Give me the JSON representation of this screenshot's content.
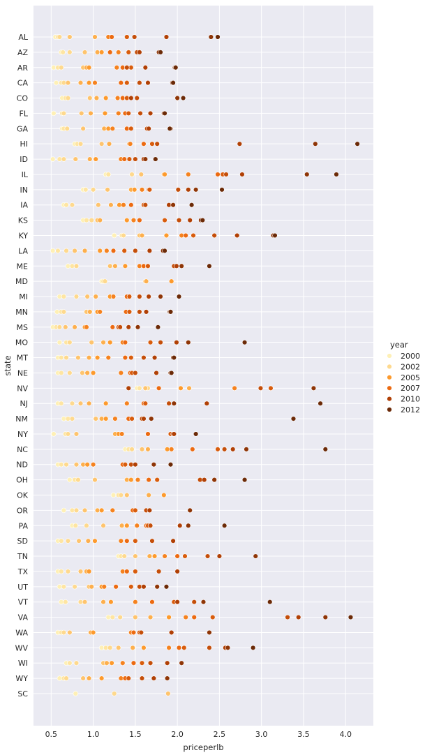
{
  "chart_data": {
    "type": "scatter",
    "xlabel": "priceperlb",
    "ylabel": "state",
    "xlim": [
      0.29,
      4.33
    ],
    "xticks": [
      "0.5",
      "1.0",
      "1.5",
      "2.0",
      "2.5",
      "3.0",
      "3.5",
      "4.0"
    ],
    "grid": true,
    "legend": {
      "title": "year",
      "placement": "right",
      "entries": [
        "2000",
        "2002",
        "2005",
        "2007",
        "2010",
        "2012"
      ],
      "colors": [
        "#fef0b6",
        "#fed98e",
        "#fd9a2d",
        "#ec6a11",
        "#b04006",
        "#6b2a08"
      ]
    },
    "years": [
      2000,
      2001,
      2002,
      2003,
      2004,
      2005,
      2006,
      2007,
      2008,
      2009,
      2010,
      2011,
      2012
    ],
    "states": [
      {
        "state": "AL",
        "prices": [
          0.55,
          0.58,
          0.6,
          0.72,
          1.02,
          1.2,
          1.18,
          1.22,
          1.4,
          1.49,
          1.87,
          2.4,
          2.48
        ]
      },
      {
        "state": "AZ",
        "prices": [
          0.62,
          0.64,
          0.72,
          0.9,
          1.05,
          1.1,
          1.3,
          1.2,
          1.42,
          1.52,
          1.55,
          1.78,
          1.8
        ]
      },
      {
        "state": "AR",
        "prices": [
          0.53,
          0.58,
          0.62,
          0.88,
          0.92,
          0.95,
          1.28,
          1.35,
          1.45,
          1.4,
          1.62,
          1.97,
          1.98
        ]
      },
      {
        "state": "CA",
        "prices": [
          0.56,
          0.62,
          0.65,
          0.7,
          0.85,
          0.95,
          1.02,
          1.33,
          1.4,
          1.55,
          1.65,
          1.94,
          1.95
        ]
      },
      {
        "state": "CO",
        "prices": [
          0.63,
          0.67,
          0.7,
          0.96,
          1.04,
          1.15,
          1.29,
          1.35,
          1.4,
          1.52,
          1.45,
          2.0,
          2.07
        ]
      },
      {
        "state": "FL",
        "prices": [
          0.53,
          0.63,
          0.65,
          0.86,
          0.97,
          1.14,
          1.3,
          1.38,
          1.42,
          1.56,
          1.68,
          1.84,
          1.85
        ]
      },
      {
        "state": "GA",
        "prices": [
          0.63,
          0.65,
          0.69,
          0.88,
          1.13,
          1.18,
          1.23,
          1.4,
          1.45,
          1.64,
          1.66,
          1.92,
          1.91
        ]
      },
      {
        "state": "HI",
        "prices": [
          0.78,
          0.81,
          0.85,
          1.1,
          1.19,
          1.43,
          1.44,
          1.6,
          1.7,
          1.76,
          2.74,
          3.64,
          4.14
        ]
      },
      {
        "state": "ID",
        "prices": [
          0.52,
          0.6,
          0.65,
          0.79,
          0.96,
          1.03,
          1.33,
          1.37,
          1.43,
          1.5,
          1.6,
          1.62,
          1.74
        ]
      },
      {
        "state": "IL",
        "prices": [
          1.15,
          1.18,
          1.46,
          1.57,
          1.84,
          1.85,
          2.13,
          2.48,
          2.54,
          2.58,
          2.77,
          3.54,
          3.89
        ]
      },
      {
        "state": "IN",
        "prices": [
          0.88,
          0.91,
          1.0,
          1.17,
          1.45,
          1.49,
          1.58,
          1.66,
          1.67,
          2.01,
          2.13,
          2.22,
          2.53
        ]
      },
      {
        "state": "IA",
        "prices": [
          0.65,
          0.68,
          0.75,
          1.06,
          1.21,
          1.31,
          1.36,
          1.45,
          1.6,
          1.62,
          1.9,
          1.95,
          2.17
        ]
      },
      {
        "state": "KS",
        "prices": [
          0.88,
          0.92,
          0.98,
          1.05,
          1.08,
          1.4,
          1.48,
          1.55,
          1.85,
          2.02,
          2.15,
          2.28,
          2.3
        ]
      },
      {
        "state": "KY",
        "prices": [
          1.25,
          1.34,
          1.36,
          1.55,
          1.58,
          1.87,
          2.05,
          2.1,
          2.19,
          2.44,
          2.71,
          3.14,
          3.16
        ]
      },
      {
        "state": "LA",
        "prices": [
          0.52,
          0.58,
          0.68,
          0.78,
          0.9,
          1.08,
          1.16,
          1.24,
          1.37,
          1.5,
          1.67,
          1.83,
          1.85
        ]
      },
      {
        "state": "ME",
        "prices": [
          0.7,
          0.75,
          0.8,
          1.2,
          1.26,
          1.38,
          1.55,
          1.6,
          1.65,
          1.96,
          1.99,
          2.05,
          2.38
        ]
      },
      {
        "state": "MD",
        "prices": [
          1.1,
          1.12,
          1.14,
          1.62,
          1.63,
          1.93,
          null,
          null,
          null,
          null,
          null,
          null,
          null
        ]
      },
      {
        "state": "MI",
        "prices": [
          0.6,
          0.65,
          0.8,
          0.93,
          1.03,
          1.2,
          1.24,
          1.4,
          1.43,
          1.55,
          1.66,
          1.8,
          2.02
        ]
      },
      {
        "state": "MN",
        "prices": [
          0.57,
          0.62,
          0.65,
          0.92,
          0.96,
          1.05,
          1.08,
          1.39,
          1.43,
          1.55,
          1.63,
          1.91,
          1.92
        ]
      },
      {
        "state": "MS",
        "prices": [
          0.52,
          0.56,
          0.6,
          0.67,
          0.78,
          0.9,
          0.92,
          1.23,
          1.3,
          1.32,
          1.42,
          1.53,
          1.77
        ]
      },
      {
        "state": "MO",
        "prices": [
          0.6,
          0.68,
          0.72,
          0.98,
          1.12,
          1.2,
          1.35,
          1.38,
          1.68,
          1.8,
          1.99,
          2.13,
          2.8
        ]
      },
      {
        "state": "MT",
        "prices": [
          0.58,
          0.62,
          0.68,
          0.82,
          0.95,
          1.05,
          1.18,
          1.38,
          1.45,
          1.6,
          1.73,
          1.95,
          1.96
        ]
      },
      {
        "state": "NE",
        "prices": [
          0.58,
          0.62,
          0.72,
          0.87,
          0.93,
          1.0,
          1.33,
          1.44,
          1.46,
          1.5,
          1.75,
          1.92,
          1.93
        ]
      },
      {
        "state": "NV",
        "prices": [
          1.52,
          1.55,
          1.65,
          1.62,
          2.14,
          2.04,
          2.68,
          1.78,
          3.11,
          2.99,
          1.42,
          3.62,
          null
        ]
      },
      {
        "state": "NJ",
        "prices": [
          0.58,
          0.62,
          0.75,
          0.85,
          0.95,
          1.15,
          1.4,
          1.6,
          1.62,
          1.9,
          2.35,
          1.96,
          3.7
        ]
      },
      {
        "state": "NM",
        "prices": [
          0.65,
          0.7,
          0.75,
          1.03,
          1.1,
          1.15,
          1.26,
          1.42,
          1.46,
          1.58,
          1.6,
          1.69,
          3.38
        ]
      },
      {
        "state": "NY",
        "prices": [
          0.53,
          0.67,
          0.7,
          0.8,
          1.26,
          1.3,
          1.34,
          1.65,
          1.92,
          1.95,
          1.96,
          null,
          2.22
        ]
      },
      {
        "state": "NC",
        "prices": [
          1.38,
          1.42,
          1.46,
          1.58,
          1.65,
          1.88,
          1.93,
          2.18,
          2.48,
          2.56,
          2.66,
          2.82,
          3.76
        ]
      },
      {
        "state": "ND",
        "prices": [
          0.58,
          0.62,
          0.68,
          0.8,
          0.88,
          0.93,
          1.0,
          1.35,
          1.38,
          1.45,
          1.5,
          1.72,
          1.92
        ]
      },
      {
        "state": "OH",
        "prices": [
          0.72,
          0.78,
          0.82,
          1.02,
          1.4,
          1.45,
          1.53,
          1.66,
          1.76,
          2.27,
          2.32,
          2.44,
          2.8
        ]
      },
      {
        "state": "OK",
        "prices": [
          1.24,
          1.3,
          1.33,
          1.4,
          1.66,
          1.84,
          null,
          null,
          null,
          null,
          null,
          null,
          null
        ]
      },
      {
        "state": "OR",
        "prices": [
          0.65,
          0.75,
          0.8,
          0.9,
          1.05,
          1.1,
          1.23,
          1.47,
          1.5,
          1.63,
          1.67,
          2.15,
          null
        ]
      },
      {
        "state": "PA",
        "prices": [
          0.75,
          0.79,
          0.92,
          1.12,
          1.34,
          1.4,
          1.52,
          1.63,
          1.65,
          1.68,
          2.03,
          2.13,
          2.56
        ]
      },
      {
        "state": "SD",
        "prices": [
          0.58,
          0.62,
          0.7,
          0.83,
          0.94,
          1.02,
          1.33,
          1.4,
          1.5,
          1.7,
          1.95,
          null,
          null
        ]
      },
      {
        "state": "TN",
        "prices": [
          1.3,
          1.33,
          1.37,
          1.5,
          1.67,
          1.73,
          1.85,
          2.0,
          2.09,
          2.36,
          2.5,
          2.93,
          null
        ]
      },
      {
        "state": "TX",
        "prices": [
          0.58,
          0.62,
          0.7,
          0.85,
          0.92,
          0.95,
          1.35,
          1.4,
          1.5,
          1.78,
          2.0,
          null,
          null
        ]
      },
      {
        "state": "UT",
        "prices": [
          0.6,
          0.65,
          0.78,
          0.95,
          0.98,
          1.1,
          1.13,
          1.27,
          1.45,
          1.55,
          1.6,
          1.76,
          1.87
        ]
      },
      {
        "state": "VT",
        "prices": [
          0.62,
          0.67,
          0.85,
          0.9,
          1.12,
          1.21,
          1.5,
          1.7,
          1.96,
          2.2,
          2.0,
          2.31,
          3.1
        ]
      },
      {
        "state": "VA",
        "prices": [
          1.18,
          1.23,
          1.32,
          1.5,
          1.68,
          1.9,
          2.1,
          2.2,
          2.42,
          3.31,
          3.44,
          3.76,
          4.06
        ]
      },
      {
        "state": "WA",
        "prices": [
          0.58,
          0.62,
          0.65,
          0.72,
          0.97,
          1.0,
          1.45,
          1.48,
          1.55,
          1.57,
          1.93,
          2.38,
          null
        ]
      },
      {
        "state": "WV",
        "prices": [
          1.1,
          1.15,
          1.2,
          1.3,
          1.47,
          1.6,
          1.9,
          2.02,
          2.08,
          2.38,
          2.57,
          2.6,
          2.9
        ]
      },
      {
        "state": "WI",
        "prices": [
          0.68,
          0.72,
          0.8,
          1.12,
          1.16,
          1.22,
          1.35,
          1.48,
          1.58,
          1.68,
          1.88,
          2.05,
          null
        ]
      },
      {
        "state": "WY",
        "prices": [
          0.6,
          0.65,
          0.68,
          0.88,
          0.95,
          1.1,
          1.33,
          1.38,
          1.42,
          1.58,
          1.72,
          1.88,
          null
        ]
      },
      {
        "state": "SC",
        "prices": [
          0.79,
          null,
          1.25,
          1.89,
          null,
          null,
          null,
          null,
          null,
          null,
          null,
          null,
          null
        ]
      }
    ]
  }
}
